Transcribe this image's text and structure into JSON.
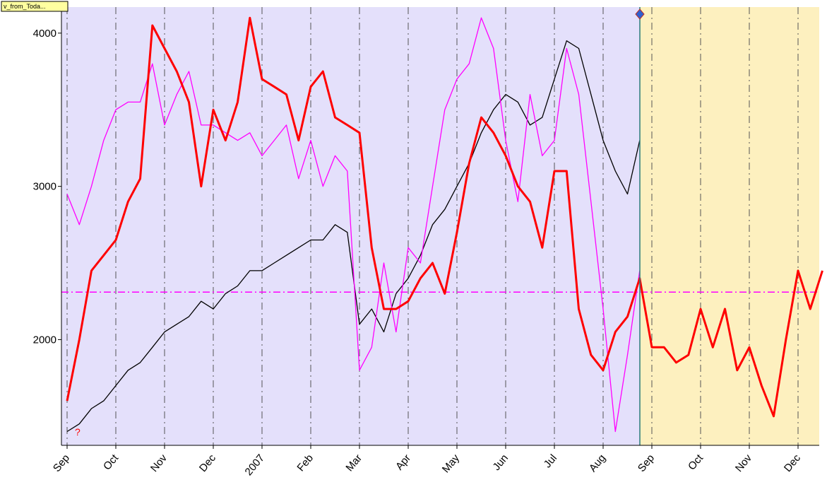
{
  "chart_data": {
    "type": "line",
    "annotation": "v_from_Toda...",
    "marker_label": "?",
    "categories": [
      "Sep",
      null,
      null,
      null,
      "Oct",
      null,
      null,
      null,
      "Nov",
      null,
      null,
      null,
      "Dec",
      null,
      null,
      null,
      "2007",
      null,
      null,
      null,
      "Feb",
      null,
      null,
      null,
      "Mar",
      null,
      null,
      null,
      "Apr",
      null,
      null,
      null,
      "May",
      null,
      null,
      null,
      "Jun",
      null,
      null,
      null,
      "Jul",
      null,
      null,
      null,
      "Aug",
      null,
      null,
      null,
      "Sep",
      null,
      null,
      null,
      "Oct",
      null,
      null,
      null,
      "Nov",
      null,
      null,
      null,
      "Dec",
      null,
      null
    ],
    "series": [
      {
        "color": "#000000",
        "values": [
          1400,
          1450,
          1550,
          1600,
          1700,
          1800,
          1850,
          1950,
          2050,
          2100,
          2150,
          2250,
          2200,
          2300,
          2350,
          2450,
          2450,
          2500,
          2550,
          2600,
          2650,
          2650,
          2750,
          2700,
          2100,
          2200,
          2050,
          2300,
          2400,
          2550,
          2750,
          2850,
          3000,
          3150,
          3350,
          3500,
          3600,
          3550,
          3400,
          3450,
          3700,
          3950,
          3900,
          3600,
          3300,
          3100,
          2950,
          3300,
          null,
          null,
          null,
          null,
          null,
          null,
          null,
          null,
          null,
          null,
          null,
          null,
          null,
          null,
          null
        ]
      },
      {
        "color": "#ff00ff",
        "values": [
          2950,
          2750,
          3000,
          3300,
          3500,
          3550,
          3550,
          3800,
          3400,
          3600,
          3750,
          3400,
          3400,
          3350,
          3300,
          3350,
          3200,
          3300,
          3400,
          3050,
          3300,
          3000,
          3200,
          3100,
          1800,
          1950,
          2500,
          2050,
          2600,
          2500,
          3000,
          3500,
          3700,
          3800,
          4100,
          3900,
          3300,
          2900,
          3600,
          3200,
          3300,
          3900,
          3600,
          2900,
          2200,
          1400,
          1900,
          2450,
          null,
          null,
          null,
          null,
          null,
          null,
          null,
          null,
          null,
          null,
          null,
          null,
          null,
          null,
          null
        ]
      },
      {
        "color": "#ff0000",
        "values": [
          1600,
          2000,
          2450,
          2550,
          2650,
          2900,
          3050,
          4050,
          3900,
          3750,
          3550,
          3000,
          3500,
          3300,
          3550,
          4100,
          3700,
          3650,
          3600,
          3300,
          3650,
          3750,
          3450,
          3400,
          3350,
          2600,
          2200,
          2200,
          2250,
          2400,
          2500,
          2300,
          2700,
          3150,
          3450,
          3350,
          3200,
          3000,
          2900,
          2600,
          3100,
          3100,
          2200,
          1900,
          1800,
          2050,
          2150,
          2400,
          1950,
          1950,
          1850,
          1900,
          2200,
          1950,
          2200,
          1800,
          1950,
          1700,
          1500,
          2000,
          2450,
          2200,
          2450
        ]
      }
    ],
    "reference_line": {
      "value": 2310,
      "color": "#ff00ff"
    },
    "ylim": [
      1310,
      4170
    ],
    "yticks": [
      2000,
      3000,
      4000
    ],
    "grid": true
  }
}
